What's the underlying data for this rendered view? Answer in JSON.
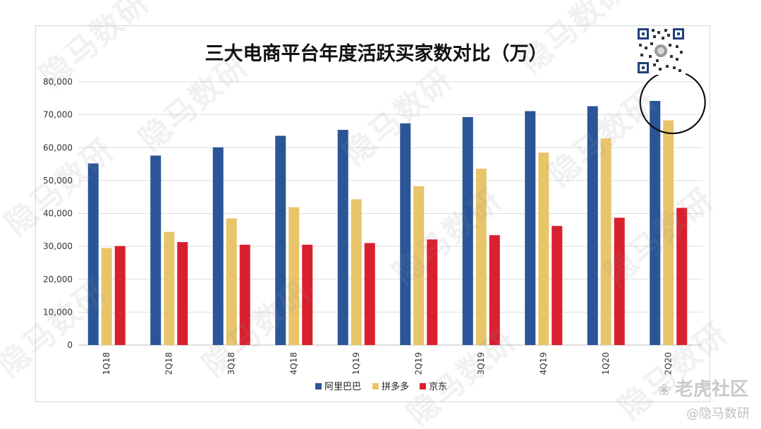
{
  "chart_data": {
    "type": "bar",
    "title": "三大电商平台年度活跃买家数对比（万）",
    "categories": [
      "1Q18",
      "2Q18",
      "3Q18",
      "4Q18",
      "1Q19",
      "2Q19",
      "3Q19",
      "4Q19",
      "1Q20",
      "2Q20"
    ],
    "series": [
      {
        "name": "阿里巴巴",
        "color": "#2a5597",
        "values": [
          55200,
          57600,
          60100,
          63600,
          65400,
          67400,
          69300,
          71100,
          72600,
          74200
        ]
      },
      {
        "name": "拼多多",
        "color": "#e8c56a",
        "values": [
          29500,
          34400,
          38500,
          41900,
          44300,
          48300,
          53600,
          58500,
          62800,
          68300
        ]
      },
      {
        "name": "京东",
        "color": "#d9202f",
        "values": [
          30100,
          31300,
          30500,
          30500,
          31000,
          32100,
          33400,
          36200,
          38700,
          41700
        ]
      }
    ],
    "yticks": [
      "0",
      "10,000",
      "20,000",
      "30,000",
      "40,000",
      "50,000",
      "60,000",
      "70,000",
      "80,000"
    ],
    "ylim": [
      0,
      80000
    ],
    "grid": true,
    "legend_position": "bottom",
    "highlight": {
      "category": "2Q20",
      "shape": "circle"
    }
  },
  "watermark": {
    "text": "隐马数研"
  },
  "branding": {
    "site": "老虎社区",
    "handle": "@隐马数研"
  }
}
